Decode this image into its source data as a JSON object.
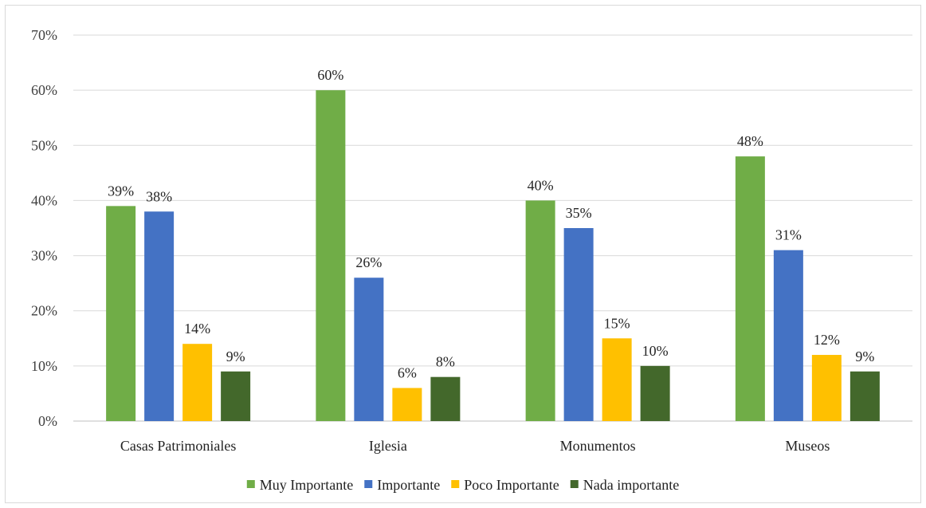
{
  "chart_data": {
    "type": "bar",
    "categories": [
      "Casas Patrimoniales",
      "Iglesia",
      "Monumentos",
      "Museos"
    ],
    "series": [
      {
        "name": "Muy Importante",
        "values": [
          0.39,
          0.6,
          0.4,
          0.48
        ],
        "labels": [
          "39%",
          "60%",
          "40%",
          "48%"
        ],
        "color": "#70AD47"
      },
      {
        "name": "Importante",
        "values": [
          0.38,
          0.26,
          0.35,
          0.31
        ],
        "labels": [
          "38%",
          "26%",
          "35%",
          "31%"
        ],
        "color": "#4472C4"
      },
      {
        "name": "Poco Importante",
        "values": [
          0.14,
          0.06,
          0.15,
          0.12
        ],
        "labels": [
          "14%",
          "6%",
          "15%",
          "12%"
        ],
        "color": "#FFC000"
      },
      {
        "name": "Nada importante",
        "values": [
          0.09,
          0.08,
          0.1,
          0.09
        ],
        "labels": [
          "9%",
          "8%",
          "10%",
          "9%"
        ],
        "color": "#43682B"
      }
    ],
    "yticks": [
      0,
      0.1,
      0.2,
      0.3,
      0.4,
      0.5,
      0.6,
      0.7
    ],
    "ytick_labels": [
      "0%",
      "10%",
      "20%",
      "30%",
      "40%",
      "50%",
      "60%",
      "70%"
    ],
    "ylim": [
      0,
      0.7
    ],
    "grid": true,
    "legend_position": "bottom",
    "title": "",
    "xlabel": "",
    "ylabel": ""
  }
}
